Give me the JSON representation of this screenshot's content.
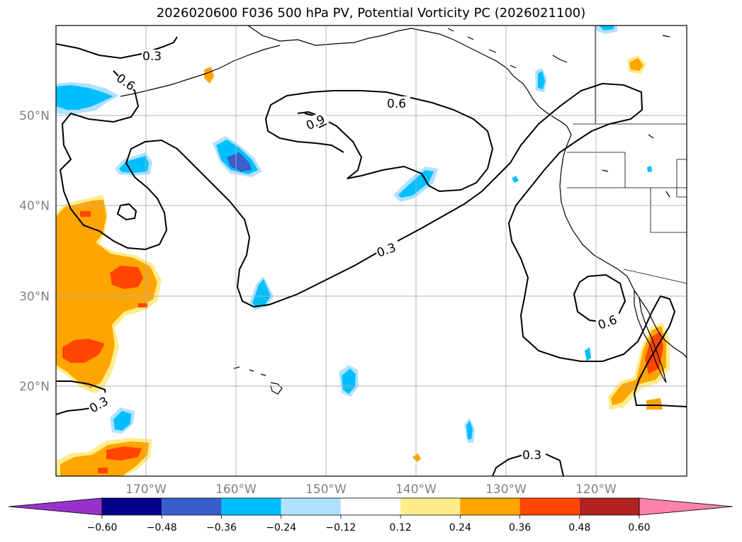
{
  "title": "2026020600 F036 500 hPa PV, Potential Vorticity PC (2026021100)",
  "map": {
    "lat_labels": [
      "50°N",
      "40°N",
      "30°N",
      "20°N"
    ],
    "lon_labels": [
      "170°W",
      "160°W",
      "150°W",
      "140°W",
      "130°W",
      "120°W"
    ],
    "contour_labels": [
      "0.3",
      "0.6",
      "0.9",
      "0.6",
      "0.3",
      "0.6",
      "0.3",
      "0.3"
    ]
  },
  "colorbar": {
    "ticks": [
      "−0.60",
      "−0.48",
      "−0.36",
      "−0.24",
      "−0.12",
      "0.12",
      "0.24",
      "0.36",
      "0.48",
      "0.60"
    ],
    "colors": [
      "#9932cc",
      "#00008b",
      "#3a5fcd",
      "#00bfff",
      "#b0e2ff",
      "#ffffff",
      "#ffec8b",
      "#ffa500",
      "#ff4500",
      "#b22222",
      "#ff82ab"
    ]
  },
  "colors": {
    "land": "#000000",
    "grid": "#b0b0b0",
    "contour": "#000000",
    "pv_pos_1": "#ffec8b",
    "pv_pos_2": "#ffa500",
    "pv_pos_3": "#ff4500",
    "pv_neg_1": "#b0e2ff",
    "pv_neg_2": "#00bfff",
    "pv_neg_3": "#3a5fcd"
  }
}
